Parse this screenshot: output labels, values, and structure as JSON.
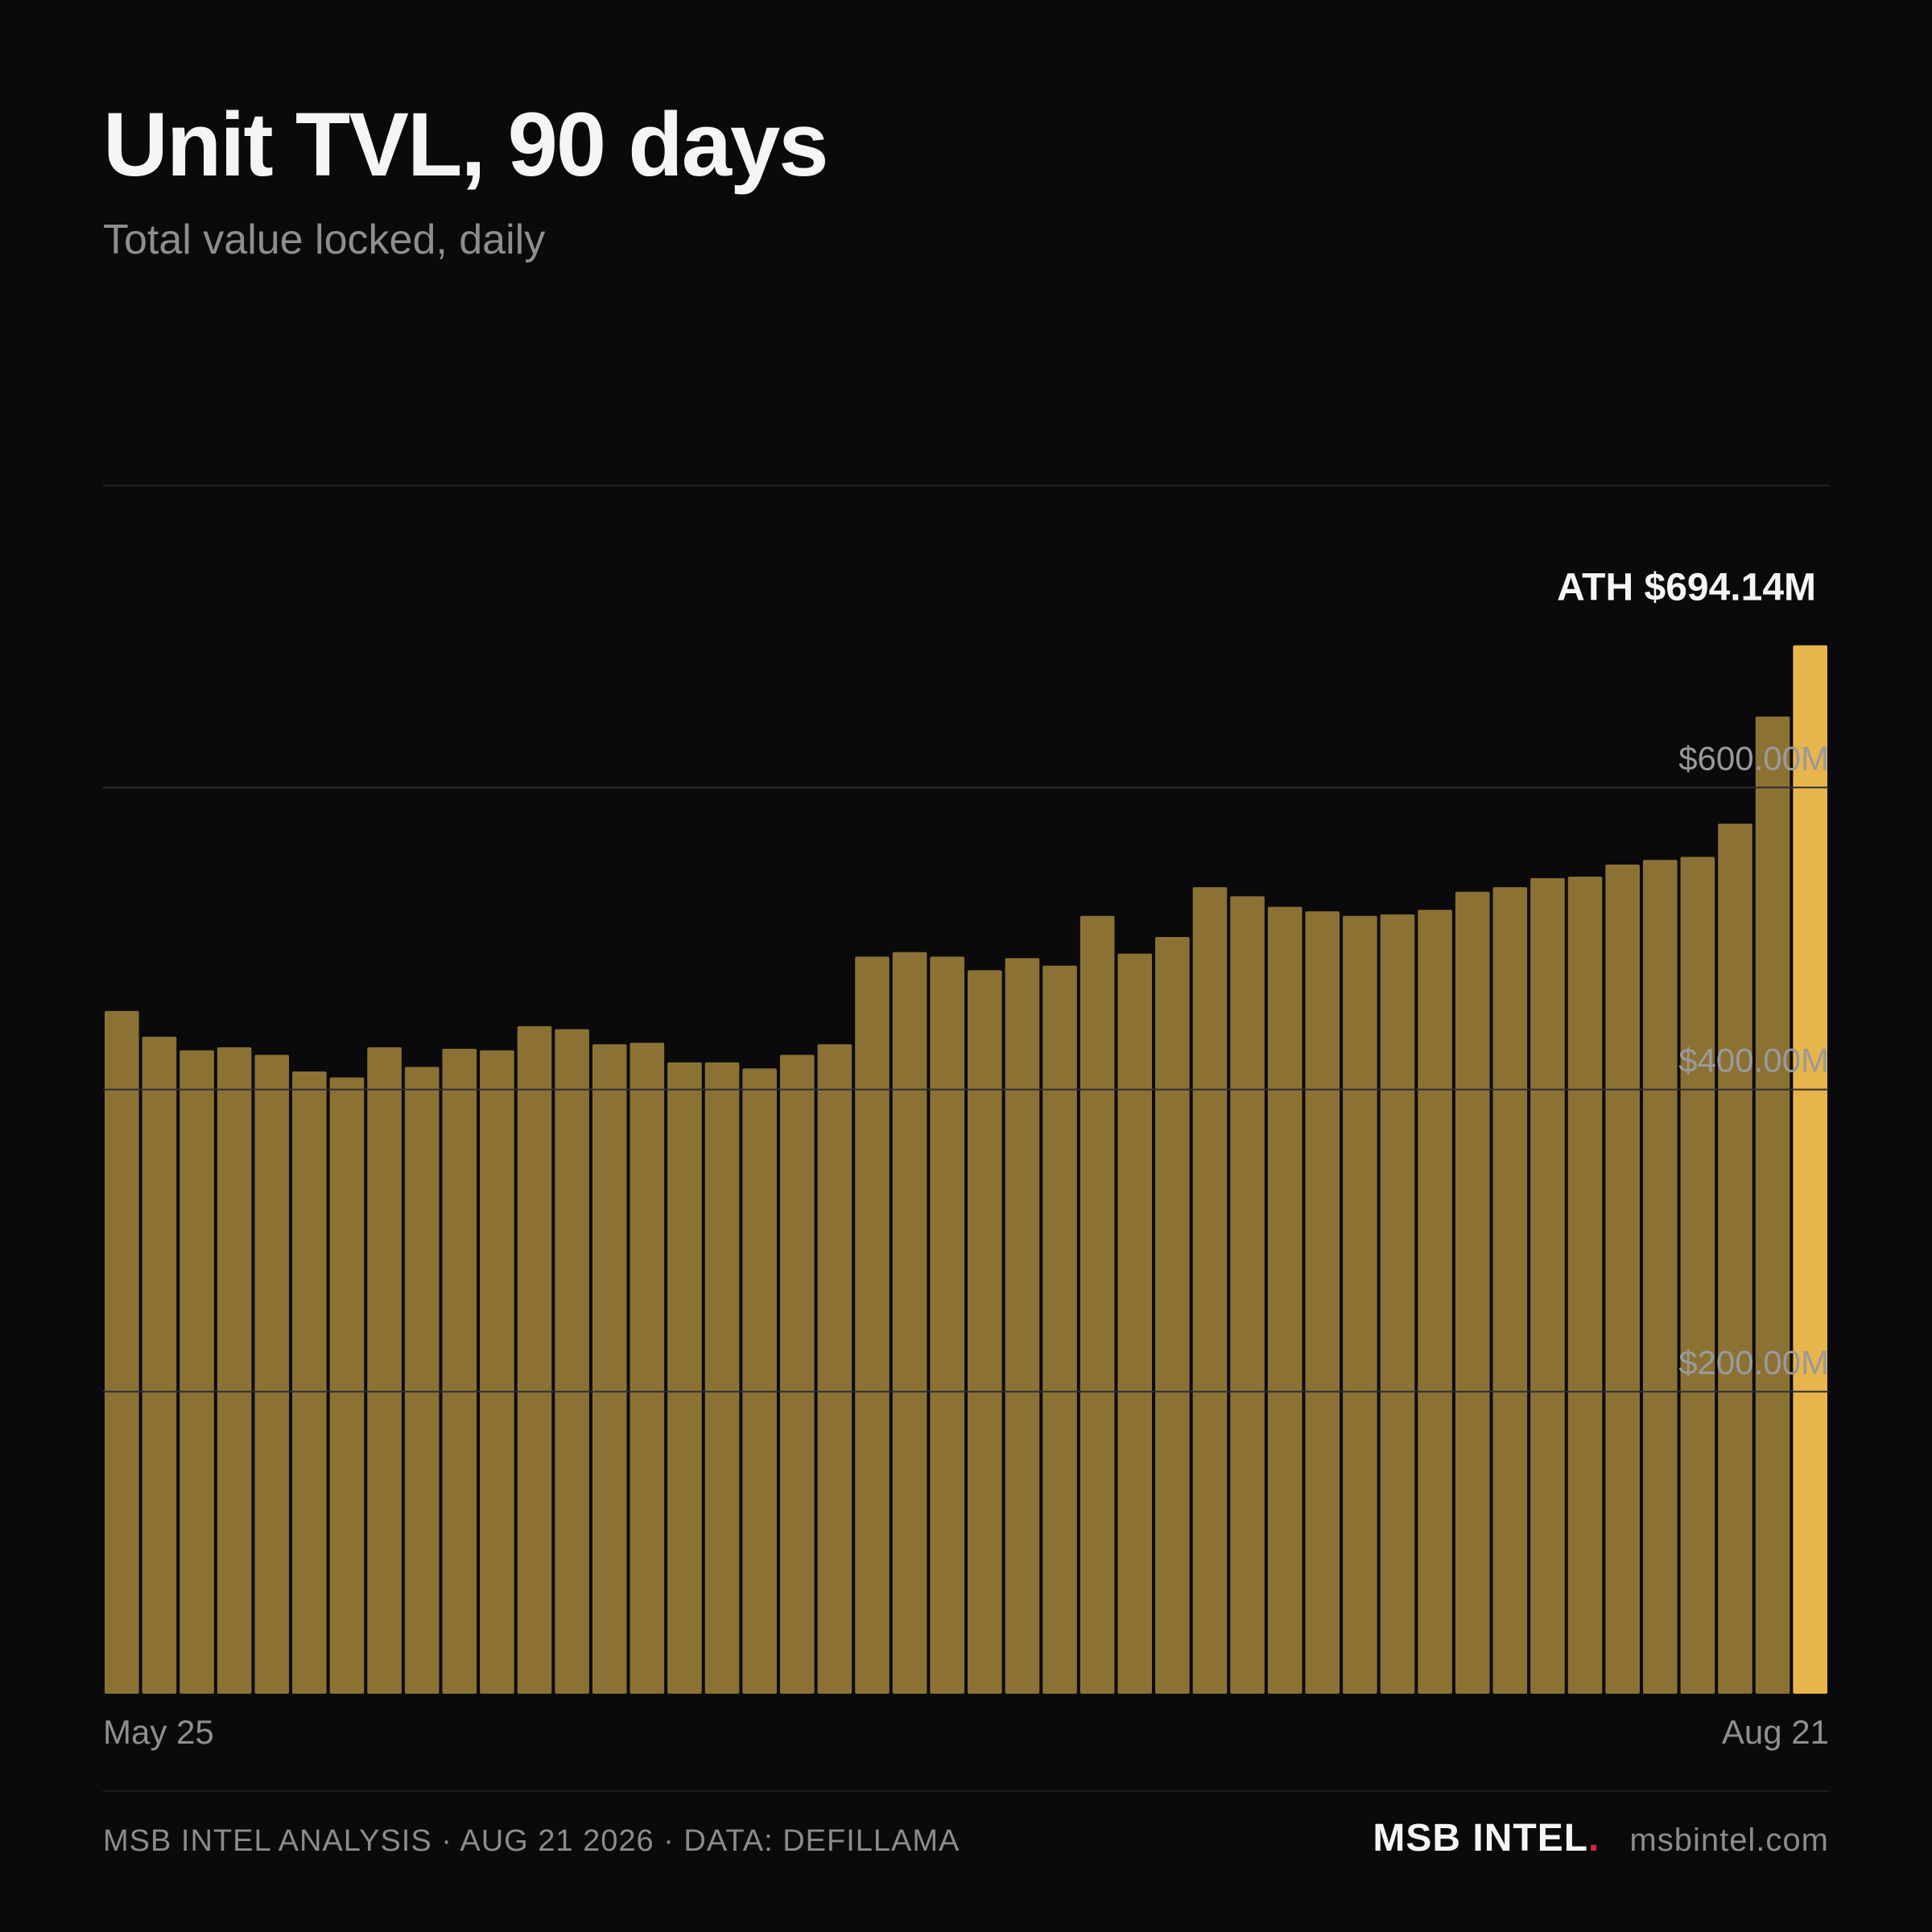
{
  "header": {
    "title": "Unit TVL, 90 days",
    "subtitle": "Total value locked, daily"
  },
  "chart_data": {
    "type": "bar",
    "title": "Unit TVL, 90 days",
    "subtitle": "Total value locked, daily",
    "ylim": [
      0,
      800
    ],
    "y_unit": "$M",
    "yticks": [
      {
        "value": 200,
        "label": "$200.00M"
      },
      {
        "value": 400,
        "label": "$400.00M"
      },
      {
        "value": 600,
        "label": "$600.00M"
      }
    ],
    "x_start_label": "May 25",
    "x_end_label": "Aug 21",
    "values": [
      452,
      435,
      426,
      428,
      423,
      412,
      408,
      428,
      415,
      427,
      426,
      442,
      440,
      430,
      431,
      418,
      418,
      414,
      423,
      430,
      488,
      491,
      488,
      479,
      487,
      482,
      515,
      490,
      501,
      534,
      528,
      521,
      518,
      515,
      516,
      519,
      531,
      534,
      540,
      541,
      549,
      552,
      554,
      576,
      647,
      694.14
    ],
    "highlight_index": 45,
    "annotation": "ATH $694.14M",
    "grid": true,
    "colors": {
      "bar": "#8b7234",
      "highlight": "#e8b44c",
      "grid": "#2c2c30"
    }
  },
  "footer": {
    "left": "MSB INTEL ANALYSIS · AUG 21 2026 · DATA: DEFILLAMA",
    "brand": "MSB INTEL",
    "brand_dot": ".",
    "site": "msbintel.com"
  }
}
